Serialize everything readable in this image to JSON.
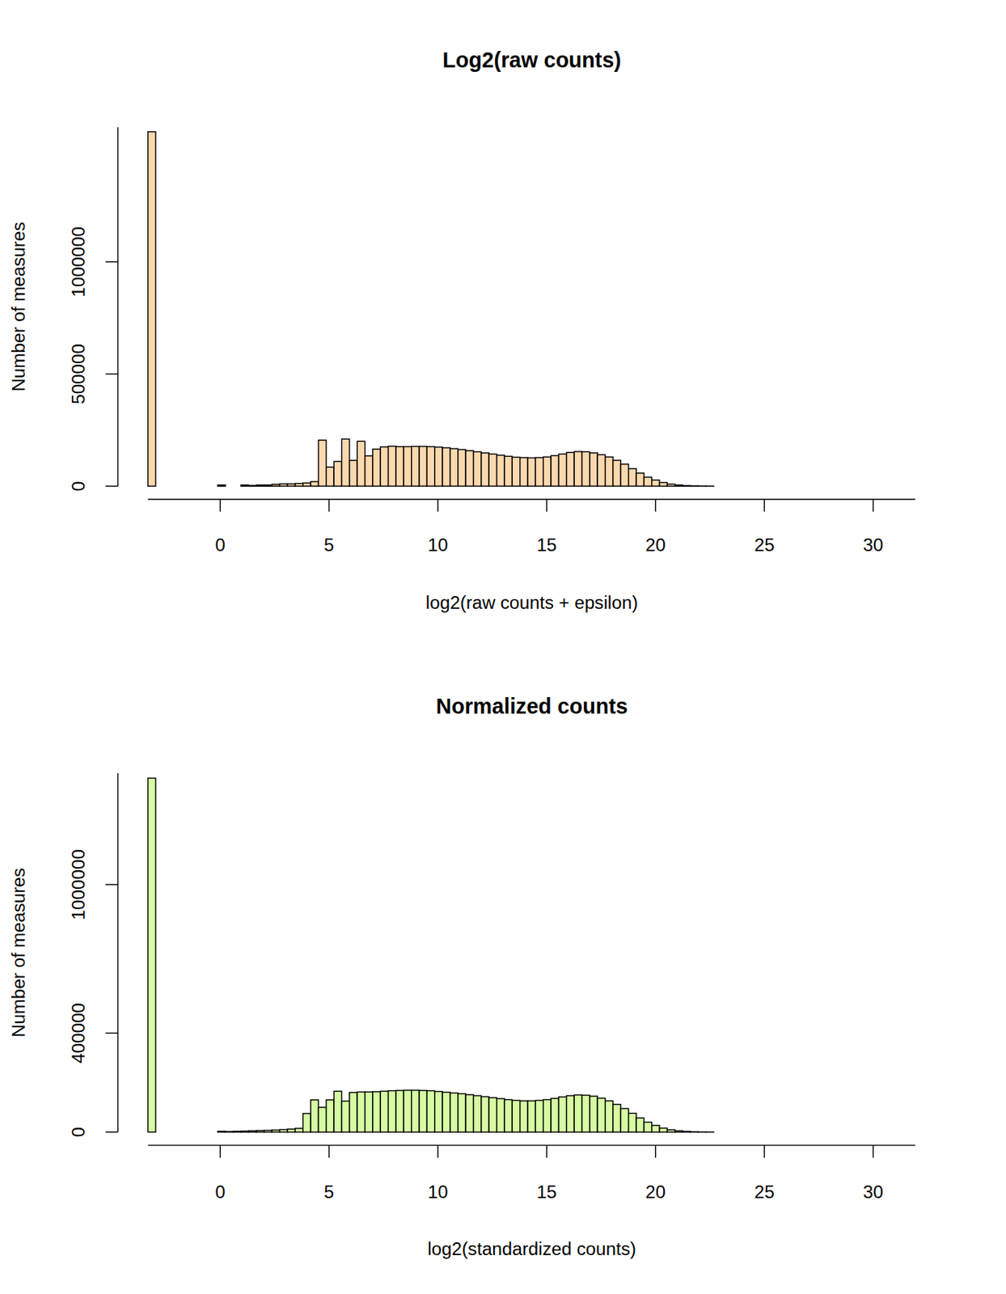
{
  "chart_data": [
    {
      "type": "histogram",
      "title": "Log2(raw counts)",
      "x_label": "log2(raw counts + epsilon)",
      "y_label": "Number of measures",
      "color": "#FCD8AE",
      "bins": [
        -3.322,
        -2.966,
        -2.61,
        -2.253,
        -1.897,
        -1.541,
        -1.185,
        -0.829,
        -0.473,
        -0.117,
        0.239,
        0.596,
        0.952,
        1.308,
        1.664,
        2.02,
        2.376,
        2.732,
        3.089,
        3.445,
        3.801,
        4.157,
        4.513,
        4.869,
        5.225,
        5.581,
        5.937,
        6.294,
        6.65,
        7.006,
        7.362,
        7.718,
        8.074,
        8.43,
        8.787,
        9.143,
        9.499,
        9.855,
        10.211,
        10.567,
        10.923,
        11.28,
        11.636,
        11.992,
        12.348,
        12.704,
        13.06,
        13.416,
        13.773,
        14.129,
        14.485,
        14.841,
        15.197,
        15.553,
        15.909,
        16.266,
        16.622,
        16.978,
        17.334,
        17.69,
        18.046,
        18.402,
        18.759,
        19.115,
        19.471,
        19.827,
        20.183,
        20.539,
        20.895,
        21.252,
        21.608,
        21.964,
        22.32,
        22.676,
        23.032,
        23.388,
        23.745,
        24.101,
        24.457,
        24.813,
        25.169,
        25.525,
        25.881,
        26.238,
        26.594,
        26.95,
        27.306,
        27.662,
        28.018,
        28.374,
        28.731,
        29.087,
        29.443,
        29.799,
        30.155,
        30.511,
        30.867,
        31.224,
        31.58,
        31.936
      ],
      "values": [
        1580000,
        0,
        0,
        0,
        0,
        0,
        0,
        0,
        0,
        5000,
        0,
        0,
        5000,
        3000,
        5000,
        5000,
        8000,
        10000,
        10000,
        12000,
        14000,
        20000,
        205000,
        85000,
        110000,
        210000,
        115000,
        200000,
        135000,
        165000,
        175000,
        178000,
        176000,
        176000,
        177000,
        177000,
        176000,
        174000,
        171000,
        167000,
        163000,
        158000,
        153000,
        148000,
        143000,
        138000,
        133000,
        129000,
        127000,
        126000,
        127000,
        130000,
        136000,
        143000,
        150000,
        154000,
        153000,
        148000,
        140000,
        130000,
        115000,
        98000,
        78000,
        58000,
        40000,
        27000,
        16000,
        9000,
        5000,
        2500,
        1200,
        600,
        300,
        0,
        0,
        0,
        0,
        0,
        0,
        0,
        0,
        0,
        0,
        0,
        0,
        0,
        0,
        0,
        0,
        0,
        0,
        0,
        0,
        0,
        0,
        0,
        0,
        0,
        0
      ],
      "xlim": [
        -3.322,
        31.936
      ],
      "xticks": [
        0,
        5,
        10,
        15,
        20,
        25,
        30
      ],
      "ylim": [
        0,
        1600000
      ],
      "yticks": [
        0,
        500000,
        1000000
      ]
    },
    {
      "type": "histogram",
      "title": "Normalized counts",
      "x_label": "log2(standardized counts)",
      "y_label": "Number of measures",
      "color": "#D6FBA2",
      "bins": [
        -3.322,
        -2.966,
        -2.61,
        -2.253,
        -1.897,
        -1.541,
        -1.185,
        -0.829,
        -0.473,
        -0.117,
        0.239,
        0.596,
        0.952,
        1.308,
        1.664,
        2.02,
        2.376,
        2.732,
        3.089,
        3.445,
        3.801,
        4.157,
        4.513,
        4.869,
        5.225,
        5.581,
        5.937,
        6.294,
        6.65,
        7.006,
        7.362,
        7.718,
        8.074,
        8.43,
        8.787,
        9.143,
        9.499,
        9.855,
        10.211,
        10.567,
        10.923,
        11.28,
        11.636,
        11.992,
        12.348,
        12.704,
        13.06,
        13.416,
        13.773,
        14.129,
        14.485,
        14.841,
        15.197,
        15.553,
        15.909,
        16.266,
        16.622,
        16.978,
        17.334,
        17.69,
        18.046,
        18.402,
        18.759,
        19.115,
        19.471,
        19.827,
        20.183,
        20.539,
        20.895,
        21.252,
        21.608,
        21.964,
        22.32,
        22.676,
        23.032,
        23.388,
        23.745,
        24.101,
        24.457,
        24.813,
        25.169,
        25.525,
        25.881,
        26.238,
        26.594,
        26.95,
        27.306,
        27.662,
        28.018,
        28.374,
        28.731,
        29.087,
        29.443,
        29.799,
        30.155,
        30.511,
        30.867,
        31.224,
        31.58,
        31.936
      ],
      "values": [
        1430000,
        0,
        0,
        0,
        0,
        0,
        0,
        0,
        0,
        3000,
        2000,
        3000,
        4000,
        5000,
        6000,
        7000,
        8000,
        10000,
        12000,
        15000,
        75000,
        130000,
        100000,
        130000,
        165000,
        125000,
        160000,
        162000,
        162000,
        163000,
        165000,
        167000,
        168000,
        169000,
        169000,
        168000,
        167000,
        164000,
        161000,
        158000,
        155000,
        151000,
        147000,
        143000,
        139000,
        135000,
        131000,
        128000,
        126000,
        126000,
        128000,
        131000,
        136000,
        142000,
        147000,
        150000,
        149000,
        145000,
        137000,
        126000,
        112000,
        95000,
        76000,
        57000,
        40000,
        27000,
        16000,
        9000,
        5000,
        2500,
        1200,
        600,
        300,
        0,
        0,
        0,
        0,
        0,
        0,
        0,
        0,
        0,
        0,
        0,
        0,
        0,
        0,
        0,
        0,
        0,
        0,
        0,
        0,
        0,
        0,
        0,
        0,
        0,
        0
      ],
      "xlim": [
        -3.322,
        31.936
      ],
      "xticks": [
        0,
        5,
        10,
        15,
        20,
        25,
        30
      ],
      "ylim": [
        0,
        1450000
      ],
      "yticks": [
        0,
        400000,
        1000000
      ]
    }
  ]
}
